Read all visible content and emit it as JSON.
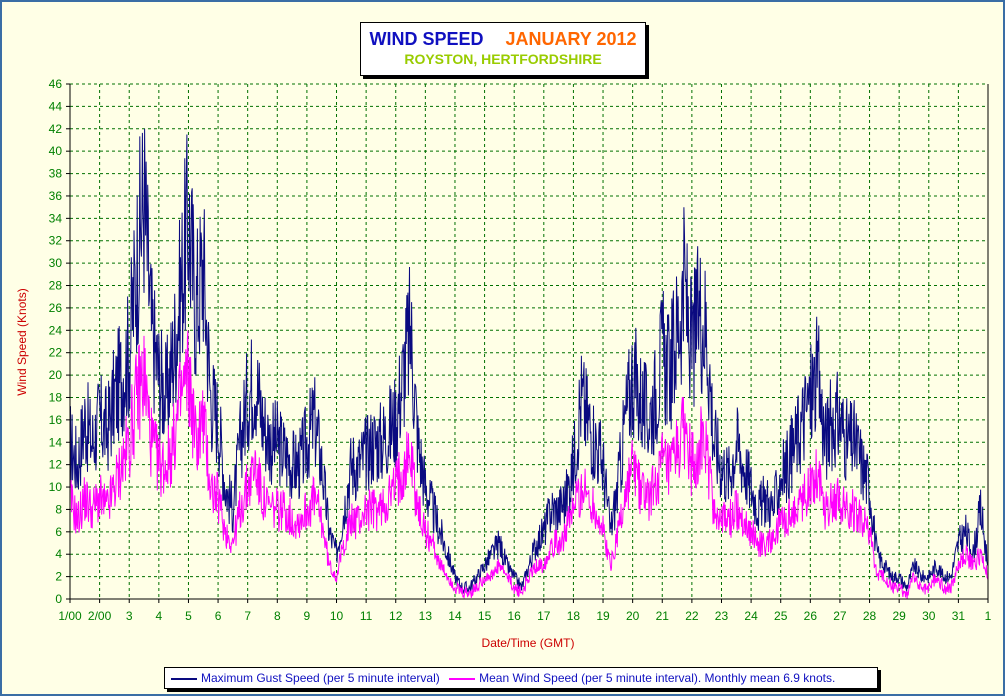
{
  "chart_data": {
    "type": "line",
    "title": "WIND SPEED",
    "title_month": "JANUARY 2012",
    "subtitle": "ROYSTON, HERTFORDSHIRE",
    "xlabel": "Date/Time (GMT)",
    "ylabel": "Wind Speed (Knots)",
    "ylim": [
      0,
      46
    ],
    "y_ticks": [
      "0",
      "2",
      "4",
      "6",
      "8",
      "10",
      "12",
      "14",
      "16",
      "18",
      "20",
      "22",
      "24",
      "26",
      "28",
      "30",
      "32",
      "34",
      "36",
      "38",
      "40",
      "42",
      "44",
      "46"
    ],
    "x_ticks": [
      "1/00",
      "2/00",
      "3",
      "4",
      "5",
      "6",
      "7",
      "8",
      "9",
      "10",
      "11",
      "12",
      "13",
      "14",
      "15",
      "16",
      "17",
      "18",
      "19",
      "20",
      "21",
      "22",
      "23",
      "24",
      "25",
      "26",
      "27",
      "28",
      "29",
      "30",
      "31",
      "1"
    ],
    "xlim_days": [
      1,
      32
    ],
    "grid": true,
    "legend_position": "bottom",
    "colors": {
      "gust": "#0a0a80",
      "mean": "#ff00ff",
      "axis_text": "#008000",
      "axis_title": "#cc0000",
      "grid": "#007000"
    },
    "series": [
      {
        "name": "Maximum Gust Speed (per 5 minute interval)",
        "color": "#0a0a80",
        "x": [
          1.0,
          1.25,
          1.5,
          1.75,
          2.0,
          2.25,
          2.5,
          2.75,
          3.0,
          3.25,
          3.5,
          3.75,
          4.0,
          4.25,
          4.5,
          4.75,
          5.0,
          5.25,
          5.5,
          5.75,
          6.0,
          6.25,
          6.5,
          6.75,
          7.0,
          7.25,
          7.5,
          7.75,
          8.0,
          8.25,
          8.5,
          8.75,
          9.0,
          9.25,
          9.5,
          9.75,
          10.0,
          10.25,
          10.5,
          10.75,
          11.0,
          11.25,
          11.5,
          11.75,
          12.0,
          12.25,
          12.5,
          12.75,
          13.0,
          13.25,
          13.5,
          13.75,
          14.0,
          14.25,
          14.5,
          14.75,
          15.0,
          15.25,
          15.5,
          15.75,
          16.0,
          16.25,
          16.5,
          16.75,
          17.0,
          17.25,
          17.5,
          17.75,
          18.0,
          18.25,
          18.5,
          18.75,
          19.0,
          19.25,
          19.5,
          19.75,
          20.0,
          20.25,
          20.5,
          20.75,
          21.0,
          21.25,
          21.5,
          21.75,
          22.0,
          22.25,
          22.5,
          22.75,
          23.0,
          23.25,
          23.5,
          23.75,
          24.0,
          24.25,
          24.5,
          24.75,
          25.0,
          25.25,
          25.5,
          25.75,
          26.0,
          26.25,
          26.5,
          26.75,
          27.0,
          27.25,
          27.5,
          27.75,
          28.0,
          28.25,
          28.5,
          28.75,
          29.0,
          29.25,
          29.5,
          29.75,
          30.0,
          30.25,
          30.5,
          30.75,
          31.0,
          31.25,
          31.5,
          31.75,
          32.0
        ],
        "values": [
          14,
          12,
          16,
          14,
          16,
          15,
          18,
          20,
          22,
          30,
          36,
          24,
          20,
          18,
          22,
          28,
          34,
          26,
          30,
          18,
          16,
          10,
          8,
          14,
          18,
          20,
          16,
          14,
          14,
          13,
          12,
          12,
          14,
          16,
          12,
          6,
          4,
          8,
          12,
          12,
          13,
          14,
          14,
          15,
          16,
          20,
          24,
          14,
          10,
          8,
          6,
          4,
          2,
          1,
          1,
          2,
          3,
          4,
          5,
          3,
          2,
          1,
          3,
          5,
          6,
          8,
          8,
          9,
          12,
          18,
          16,
          14,
          12,
          6,
          10,
          16,
          20,
          18,
          16,
          18,
          22,
          20,
          24,
          28,
          22,
          26,
          24,
          14,
          12,
          11,
          14,
          12,
          10,
          8,
          9,
          8,
          11,
          12,
          14,
          16,
          18,
          20,
          14,
          16,
          16,
          14,
          14,
          12,
          10,
          4,
          3,
          2,
          2,
          1,
          3,
          2,
          2,
          3,
          2,
          2,
          5,
          6,
          4,
          8,
          3
        ]
      },
      {
        "name": "Mean Wind Speed (per 5 minute interval). Monthly mean 6.9 knots.",
        "color": "#ff00ff",
        "x": [
          1.0,
          1.25,
          1.5,
          1.75,
          2.0,
          2.25,
          2.5,
          2.75,
          3.0,
          3.25,
          3.5,
          3.75,
          4.0,
          4.25,
          4.5,
          4.75,
          5.0,
          5.25,
          5.5,
          5.75,
          6.0,
          6.25,
          6.5,
          6.75,
          7.0,
          7.25,
          7.5,
          7.75,
          8.0,
          8.25,
          8.5,
          8.75,
          9.0,
          9.25,
          9.5,
          9.75,
          10.0,
          10.25,
          10.5,
          10.75,
          11.0,
          11.25,
          11.5,
          11.75,
          12.0,
          12.25,
          12.5,
          12.75,
          13.0,
          13.25,
          13.5,
          13.75,
          14.0,
          14.25,
          14.5,
          14.75,
          15.0,
          15.25,
          15.5,
          15.75,
          16.0,
          16.25,
          16.5,
          16.75,
          17.0,
          17.25,
          17.5,
          17.75,
          18.0,
          18.25,
          18.5,
          18.75,
          19.0,
          19.25,
          19.5,
          19.75,
          20.0,
          20.25,
          20.5,
          20.75,
          21.0,
          21.25,
          21.5,
          21.75,
          22.0,
          22.25,
          22.5,
          22.75,
          23.0,
          23.25,
          23.5,
          23.75,
          24.0,
          24.25,
          24.5,
          24.75,
          25.0,
          25.25,
          25.5,
          25.75,
          26.0,
          26.25,
          26.5,
          26.75,
          27.0,
          27.25,
          27.5,
          27.75,
          28.0,
          28.25,
          28.5,
          28.75,
          29.0,
          29.25,
          29.5,
          29.75,
          30.0,
          30.25,
          30.5,
          30.75,
          31.0,
          31.25,
          31.5,
          31.75,
          32.0
        ],
        "values": [
          9,
          7,
          9,
          8,
          9,
          8,
          10,
          12,
          14,
          18,
          20,
          14,
          12,
          12,
          14,
          18,
          20,
          14,
          16,
          10,
          9,
          6,
          5,
          8,
          10,
          12,
          9,
          8,
          8,
          8,
          7,
          7,
          8,
          9,
          7,
          3,
          2,
          5,
          7,
          7,
          8,
          8,
          8,
          9,
          10,
          12,
          13,
          8,
          6,
          5,
          3,
          2,
          1,
          0.5,
          0.5,
          1,
          2,
          2,
          3,
          2,
          1,
          0.5,
          2,
          3,
          3,
          5,
          5,
          6,
          8,
          10,
          9,
          8,
          6,
          3,
          6,
          9,
          12,
          10,
          9,
          10,
          12,
          11,
          13,
          15,
          12,
          14,
          13,
          8,
          7,
          7,
          8,
          7,
          6,
          5,
          5,
          5,
          7,
          7,
          8,
          9,
          10,
          12,
          8,
          9,
          9,
          8,
          8,
          7,
          6,
          2,
          2,
          1,
          1,
          0.5,
          2,
          1,
          1,
          2,
          1,
          1,
          3,
          4,
          3,
          4,
          2
        ]
      }
    ],
    "legend": {
      "gust_label": "Maximum Gust Speed (per 5 minute interval)",
      "mean_label": "Mean Wind Speed (per 5 minute interval). Monthly mean 6.9 knots."
    }
  }
}
